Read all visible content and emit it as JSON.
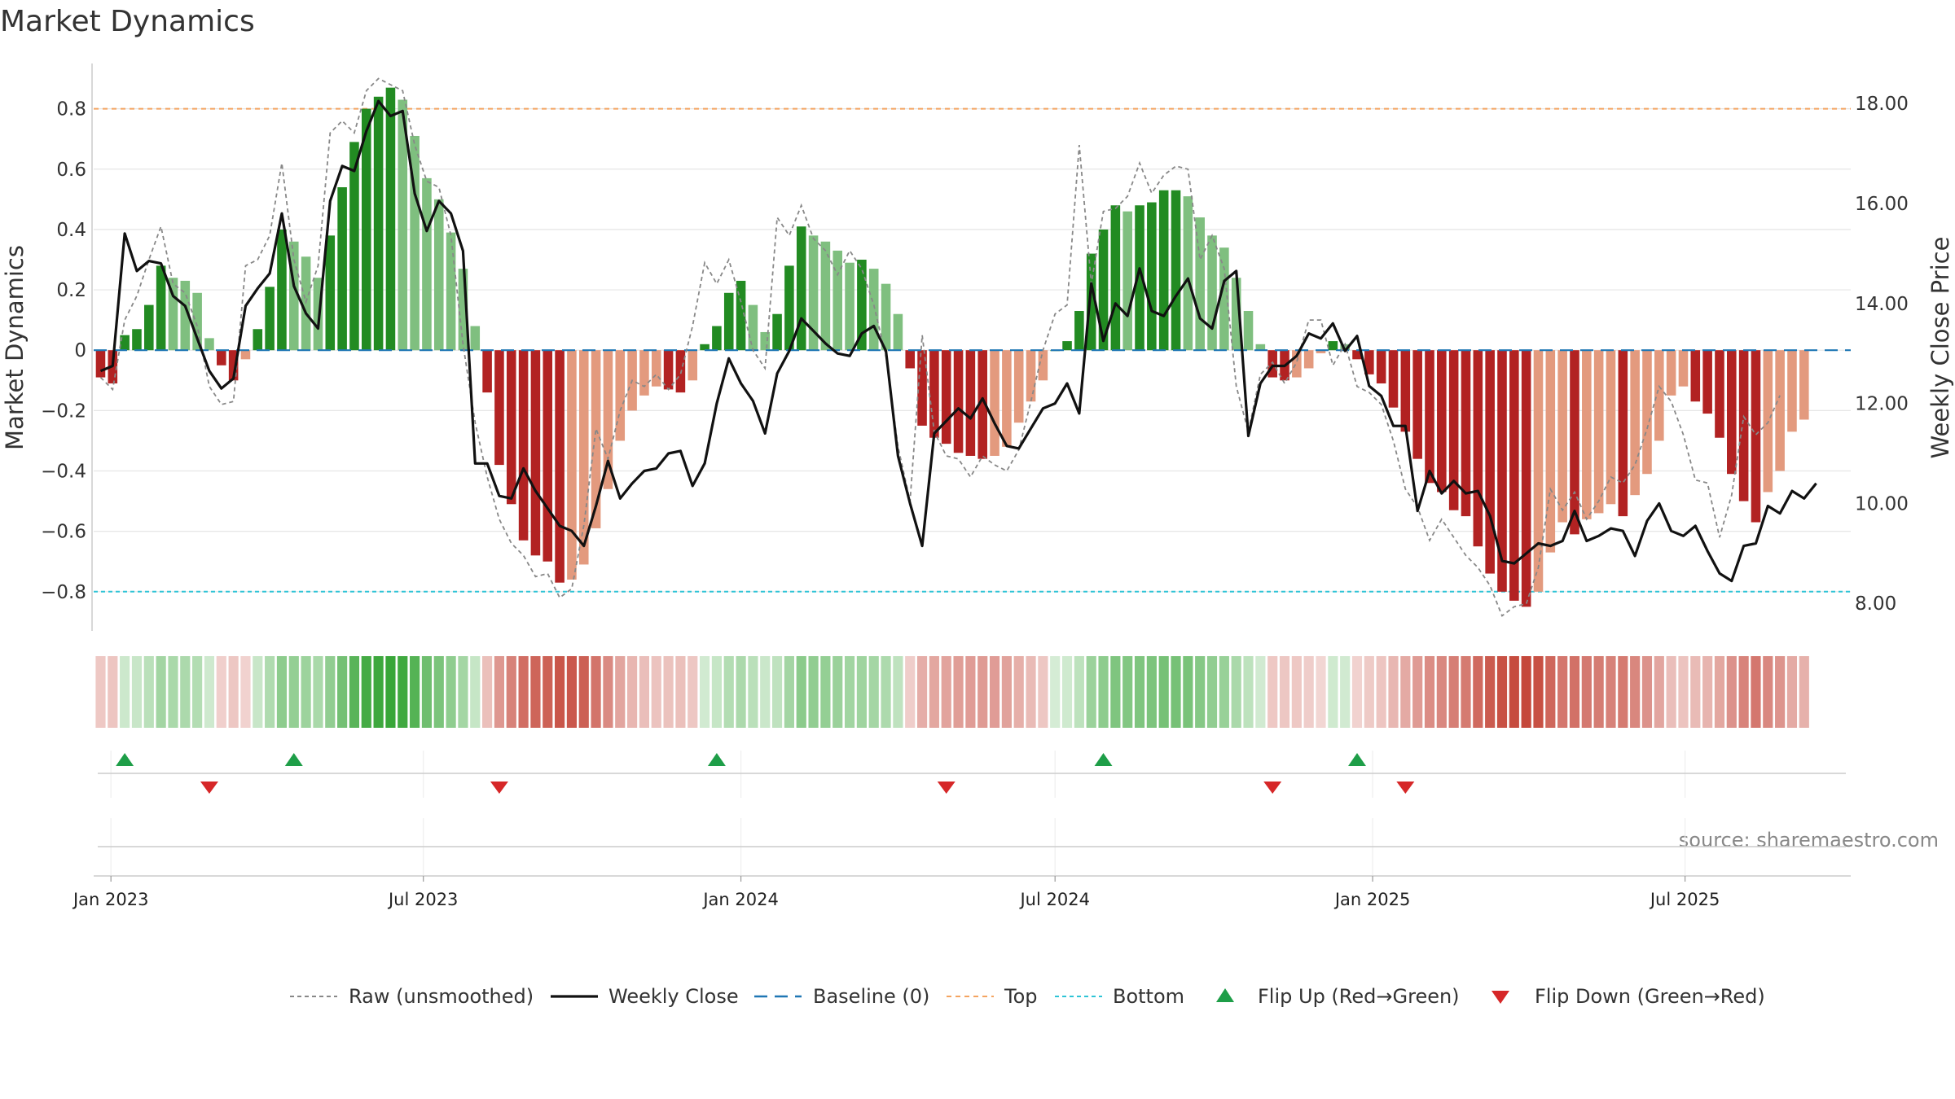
{
  "chart_data": {
    "type": "bar",
    "title": "Market Dynamics",
    "ylabel": "Market Dynamics",
    "y2label": "Weekly Close Price",
    "ylim": [
      -0.93,
      0.95
    ],
    "y2lim": [
      7.45,
      18.8
    ],
    "yticks": [
      0.8,
      0.6,
      0.4,
      0.2,
      0,
      -0.2,
      -0.4,
      -0.6,
      -0.8
    ],
    "ytick_labels": [
      "0.8",
      "0.6",
      "0.4",
      "0.2",
      "0",
      "−0.2",
      "−0.4",
      "−0.6",
      "−0.8"
    ],
    "y2ticks": [
      18,
      16,
      14,
      12,
      10,
      8
    ],
    "y2tick_labels": [
      "18.00",
      "16.00",
      "14.00",
      "12.00",
      "10.00",
      "8.00"
    ],
    "x_date_ticks": [
      "2023-01-01",
      "2023-07-01",
      "2024-01-01",
      "2024-07-01",
      "2025-01-01",
      "2025-07-01"
    ],
    "x_tick_labels": [
      "Jan 2023",
      "Jul 2023",
      "Jan 2024",
      "Jul 2024",
      "Jan 2025",
      "Jul 2025"
    ],
    "x_range": [
      "2022-12-22",
      "2025-10-05"
    ],
    "first_week": "2022-12-26",
    "top_level": 0.8,
    "bottom_level": -0.8,
    "baseline": 0,
    "source": "source: sharemaestro.com",
    "grid": true,
    "legend_position": "bottom",
    "colors": {
      "strong_up": "#228b22",
      "weak_up": "#7fbf7f",
      "strong_down": "#b22222",
      "weak_down": "#e39a7e",
      "raw": "#888888",
      "close": "#111111",
      "baseline": "#1f77b4",
      "top": "#f4a460",
      "bottom": "#2ec4d6",
      "flip_up": "#1e9e48",
      "flip_down": "#d62728"
    },
    "legend": [
      {
        "key": "raw",
        "label": "Raw (unsmoothed)"
      },
      {
        "key": "close",
        "label": "Weekly Close"
      },
      {
        "key": "baseline",
        "label": "Baseline (0)"
      },
      {
        "key": "top",
        "label": "Top"
      },
      {
        "key": "bottom",
        "label": "Bottom"
      },
      {
        "key": "flip_up",
        "label": "Flip Up (Red→Green)"
      },
      {
        "key": "flip_down",
        "label": "Flip Down (Green→Red)"
      }
    ],
    "series": [
      {
        "key": "dynamics",
        "values": [
          -0.09,
          -0.11,
          0.05,
          0.07,
          0.15,
          0.28,
          0.24,
          0.23,
          0.19,
          0.04,
          -0.05,
          -0.1,
          -0.03,
          0.07,
          0.21,
          0.4,
          0.36,
          0.31,
          0.24,
          0.38,
          0.54,
          0.69,
          0.8,
          0.84,
          0.87,
          0.83,
          0.71,
          0.57,
          0.5,
          0.39,
          0.27,
          0.08,
          -0.14,
          -0.38,
          -0.51,
          -0.63,
          -0.68,
          -0.7,
          -0.77,
          -0.76,
          -0.71,
          -0.59,
          -0.46,
          -0.3,
          -0.2,
          -0.15,
          -0.12,
          -0.13,
          -0.14,
          -0.1,
          0.02,
          0.08,
          0.19,
          0.23,
          0.15,
          0.06,
          0.12,
          0.28,
          0.41,
          0.38,
          0.36,
          0.33,
          0.29,
          0.3,
          0.27,
          0.22,
          0.12,
          -0.06,
          -0.25,
          -0.29,
          -0.31,
          -0.34,
          -0.35,
          -0.36,
          -0.35,
          -0.32,
          -0.24,
          -0.17,
          -0.1,
          0.0,
          0.03,
          0.13,
          0.32,
          0.4,
          0.48,
          0.46,
          0.48,
          0.49,
          0.53,
          0.53,
          0.51,
          0.44,
          0.38,
          0.34,
          0.24,
          0.13,
          0.02,
          -0.09,
          -0.1,
          -0.09,
          -0.06,
          -0.01,
          0.03,
          0.02,
          -0.03,
          -0.08,
          -0.11,
          -0.19,
          -0.27,
          -0.36,
          -0.44,
          -0.47,
          -0.53,
          -0.55,
          -0.65,
          -0.74,
          -0.8,
          -0.83,
          -0.85,
          -0.8,
          -0.67,
          -0.57,
          -0.61,
          -0.56,
          -0.54,
          -0.51,
          -0.55,
          -0.48,
          -0.41,
          -0.3,
          -0.15,
          -0.12,
          -0.17,
          -0.21,
          -0.29,
          -0.41,
          -0.5,
          -0.57,
          -0.47,
          -0.4,
          -0.27,
          -0.23
        ]
      },
      {
        "key": "raw",
        "values": [
          -0.09,
          -0.13,
          0.1,
          0.18,
          0.3,
          0.41,
          0.22,
          0.19,
          0.08,
          -0.12,
          -0.18,
          -0.17,
          0.28,
          0.3,
          0.38,
          0.62,
          0.3,
          0.16,
          0.28,
          0.72,
          0.76,
          0.72,
          0.86,
          0.9,
          0.88,
          0.86,
          0.68,
          0.56,
          0.54,
          0.38,
          0.02,
          -0.24,
          -0.42,
          -0.56,
          -0.64,
          -0.68,
          -0.75,
          -0.74,
          -0.82,
          -0.79,
          -0.58,
          -0.26,
          -0.36,
          -0.2,
          -0.1,
          -0.12,
          -0.08,
          -0.13,
          -0.08,
          0.08,
          0.29,
          0.22,
          0.3,
          0.16,
          0.0,
          -0.06,
          0.44,
          0.38,
          0.48,
          0.37,
          0.33,
          0.25,
          0.33,
          0.27,
          0.15,
          -0.02,
          -0.32,
          -0.5,
          0.05,
          -0.27,
          -0.35,
          -0.36,
          -0.42,
          -0.35,
          -0.38,
          -0.4,
          -0.33,
          -0.17,
          0.0,
          0.12,
          0.15,
          0.68,
          0.22,
          0.46,
          0.47,
          0.51,
          0.62,
          0.52,
          0.58,
          0.61,
          0.6,
          0.3,
          0.38,
          0.27,
          -0.12,
          -0.27,
          -0.08,
          -0.04,
          -0.11,
          -0.04,
          0.1,
          0.1,
          -0.05,
          0.02,
          -0.12,
          -0.14,
          -0.18,
          -0.3,
          -0.46,
          -0.52,
          -0.63,
          -0.56,
          -0.62,
          -0.68,
          -0.72,
          -0.78,
          -0.88,
          -0.85,
          -0.84,
          -0.72,
          -0.46,
          -0.53,
          -0.47,
          -0.56,
          -0.5,
          -0.42,
          -0.44,
          -0.38,
          -0.26,
          -0.12,
          -0.17,
          -0.28,
          -0.43,
          -0.44,
          -0.62,
          -0.48,
          -0.22,
          -0.28,
          -0.24,
          -0.15
        ]
      },
      {
        "key": "close",
        "values": [
          12.65,
          12.75,
          15.4,
          14.65,
          14.85,
          14.8,
          14.15,
          13.95,
          13.3,
          12.65,
          12.3,
          12.5,
          13.95,
          14.3,
          14.6,
          15.8,
          14.35,
          13.8,
          13.5,
          16.05,
          16.75,
          16.65,
          17.45,
          18.05,
          17.75,
          17.85,
          16.2,
          15.45,
          16.05,
          15.8,
          15.05,
          10.8,
          10.8,
          10.15,
          10.1,
          10.7,
          10.25,
          9.9,
          9.55,
          9.45,
          9.15,
          9.95,
          10.85,
          10.1,
          10.4,
          10.65,
          10.7,
          11.0,
          11.05,
          10.35,
          10.8,
          12.0,
          12.9,
          12.4,
          12.05,
          11.4,
          12.6,
          13.05,
          13.7,
          13.45,
          13.2,
          13.0,
          12.95,
          13.4,
          13.55,
          13.05,
          10.95,
          10.0,
          9.15,
          11.4,
          11.65,
          11.9,
          11.7,
          12.1,
          11.6,
          11.15,
          11.1,
          11.5,
          11.9,
          12.0,
          12.4,
          11.8,
          14.4,
          13.25,
          14.0,
          13.75,
          14.7,
          13.85,
          13.75,
          14.15,
          14.5,
          13.7,
          13.5,
          14.45,
          14.65,
          11.35,
          12.4,
          12.75,
          12.75,
          12.95,
          13.4,
          13.3,
          13.6,
          13.05,
          13.35,
          12.35,
          12.15,
          11.55,
          11.55,
          9.85,
          10.65,
          10.2,
          10.45,
          10.2,
          10.25,
          9.75,
          8.85,
          8.8,
          9.0,
          9.2,
          9.15,
          9.25,
          9.85,
          9.25,
          9.35,
          9.5,
          9.45,
          8.95,
          9.65,
          10.0,
          9.45,
          9.35,
          9.55,
          9.05,
          8.6,
          8.45,
          9.15,
          9.2,
          9.95,
          9.8,
          10.25,
          10.1,
          10.4
        ]
      }
    ],
    "flips_up": [
      "2023-01-09",
      "2023-04-17",
      "2023-12-18",
      "2024-07-29",
      "2024-12-23"
    ],
    "flips_down": [
      "2023-02-27",
      "2023-08-14",
      "2024-04-29",
      "2024-11-04",
      "2025-01-20"
    ]
  }
}
